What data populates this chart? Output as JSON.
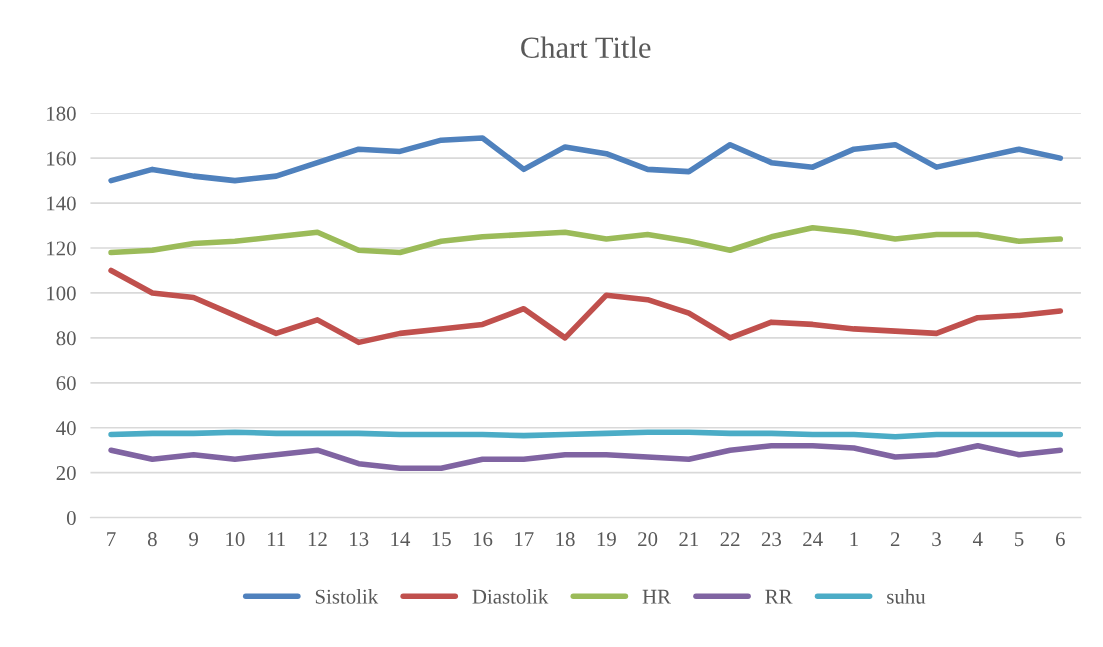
{
  "chart_data": {
    "type": "line",
    "title": "Chart Title",
    "categories": [
      "7",
      "8",
      "9",
      "10",
      "11",
      "12",
      "13",
      "14",
      "15",
      "16",
      "17",
      "18",
      "19",
      "20",
      "21",
      "22",
      "23",
      "24",
      "1",
      "2",
      "3",
      "4",
      "5",
      "6"
    ],
    "series": [
      {
        "name": "Sistolik",
        "color": "#4f81bd",
        "values": [
          150,
          155,
          152,
          150,
          152,
          158,
          164,
          163,
          168,
          169,
          155,
          165,
          162,
          155,
          154,
          166,
          158,
          156,
          164,
          166,
          156,
          160,
          164,
          160
        ]
      },
      {
        "name": "Diastolik",
        "color": "#c0504d",
        "values": [
          110,
          100,
          98,
          90,
          82,
          88,
          78,
          82,
          84,
          86,
          93,
          80,
          99,
          97,
          91,
          80,
          87,
          86,
          84,
          83,
          82,
          89,
          90,
          92
        ]
      },
      {
        "name": "HR",
        "color": "#9bbb59",
        "values": [
          118,
          119,
          122,
          123,
          125,
          127,
          119,
          118,
          123,
          125,
          126,
          127,
          124,
          126,
          123,
          119,
          125,
          129,
          127,
          124,
          126,
          126,
          123,
          124
        ]
      },
      {
        "name": "RR",
        "color": "#8064a2",
        "values": [
          30,
          26,
          28,
          26,
          28,
          30,
          24,
          22,
          22,
          26,
          26,
          28,
          28,
          27,
          26,
          30,
          32,
          32,
          31,
          27,
          28,
          32,
          28,
          30
        ]
      },
      {
        "name": "suhu",
        "color": "#4bacc6",
        "values": [
          37,
          37.5,
          37.5,
          38,
          37.5,
          37.5,
          37.5,
          37,
          37,
          37,
          36.5,
          37,
          37.5,
          38,
          38,
          37.5,
          37.5,
          37,
          37,
          36,
          37,
          37,
          37,
          37
        ]
      }
    ],
    "ylim": [
      0,
      180
    ],
    "yticks": [
      0,
      20,
      40,
      60,
      80,
      100,
      120,
      140,
      160,
      180
    ],
    "grid": "y",
    "legend": "bottom",
    "marker": "none",
    "line_style": "solid"
  }
}
